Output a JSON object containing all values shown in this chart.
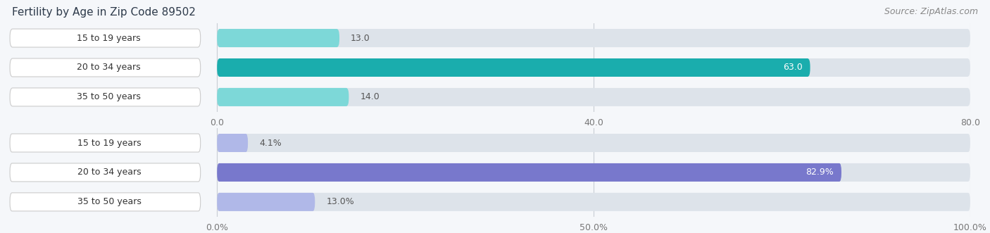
{
  "title": "Fertility by Age in Zip Code 89502",
  "source": "Source: ZipAtlas.com",
  "top_chart": {
    "categories": [
      "15 to 19 years",
      "20 to 34 years",
      "35 to 50 years"
    ],
    "values": [
      13.0,
      63.0,
      14.0
    ],
    "max_value": 80.0,
    "tick_values": [
      0.0,
      40.0,
      80.0
    ],
    "bar_colors": [
      "#7dd8d8",
      "#1aadad",
      "#7dd8d8"
    ],
    "label_colors": [
      "#444444",
      "#ffffff",
      "#444444"
    ],
    "value_inside": [
      false,
      true,
      false
    ]
  },
  "bottom_chart": {
    "categories": [
      "15 to 19 years",
      "20 to 34 years",
      "35 to 50 years"
    ],
    "values": [
      4.1,
      82.9,
      13.0
    ],
    "max_value": 100.0,
    "tick_values": [
      0.0,
      50.0,
      100.0
    ],
    "bar_colors": [
      "#b0b8e8",
      "#7878cc",
      "#b0b8e8"
    ],
    "label_colors": [
      "#444444",
      "#ffffff",
      "#444444"
    ],
    "value_inside": [
      false,
      true,
      false
    ]
  },
  "title_fontsize": 11,
  "source_fontsize": 9,
  "cat_fontsize": 9,
  "val_fontsize": 9,
  "tick_fontsize": 9,
  "bar_height": 0.62,
  "fig_bg_color": "#f5f7fa",
  "bar_bg_color": "#dde3ea",
  "white_label_bg": "#ffffff",
  "category_label_color": "#333333",
  "grid_color": "#c8cdd4",
  "tick_color": "#777777"
}
